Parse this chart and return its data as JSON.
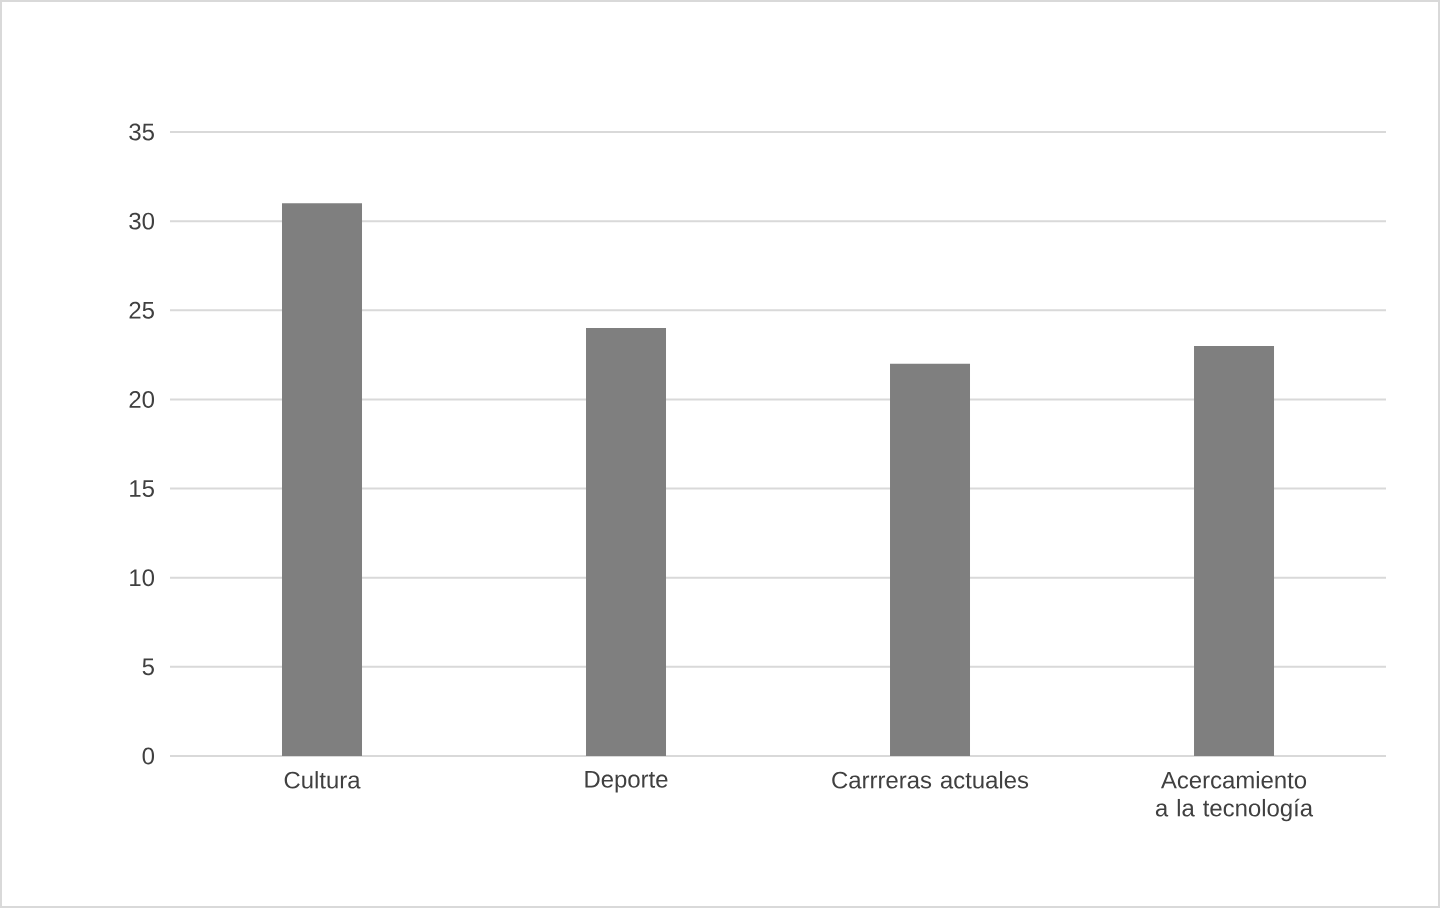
{
  "chart_data": {
    "type": "bar",
    "categories": [
      "Cultura",
      "Deporte",
      "Carrreras actuales",
      "Acercamiento a la tecnología"
    ],
    "values": [
      31,
      24,
      22,
      23
    ],
    "color": "#7f7f7f",
    "ylim": [
      0,
      35
    ],
    "yticks": [
      0,
      5,
      10,
      15,
      20,
      25,
      30,
      35
    ],
    "grid": "y"
  }
}
